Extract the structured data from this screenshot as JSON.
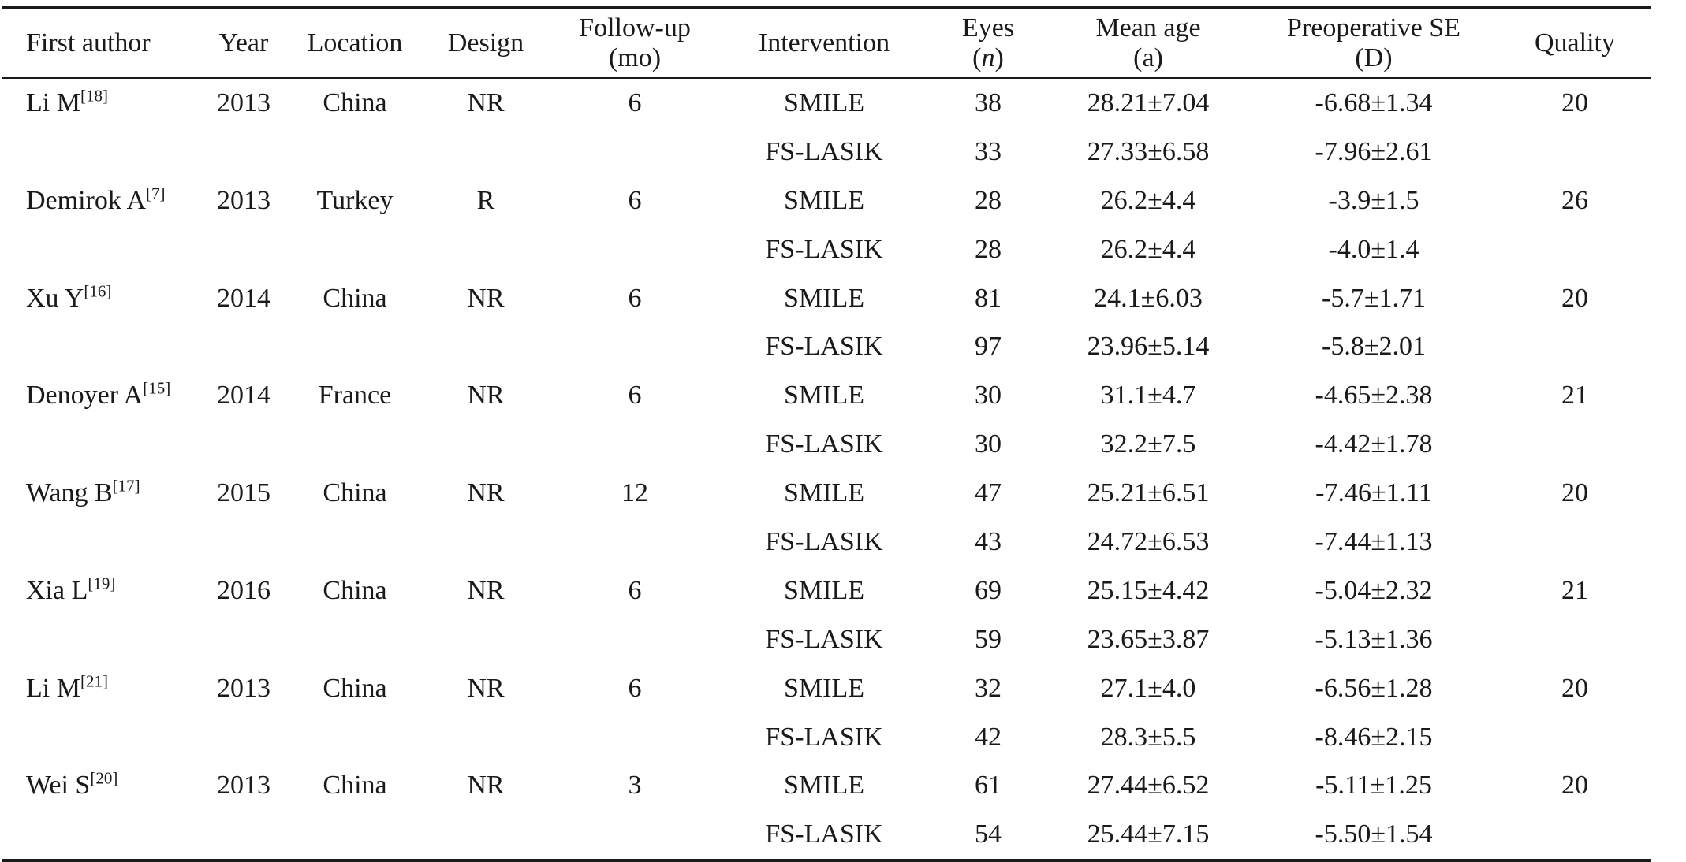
{
  "table": {
    "headers": [
      {
        "key": "author",
        "lines": [
          "First author"
        ]
      },
      {
        "key": "year",
        "lines": [
          "Year"
        ]
      },
      {
        "key": "location",
        "lines": [
          "Location"
        ]
      },
      {
        "key": "design",
        "lines": [
          "Design"
        ]
      },
      {
        "key": "followup",
        "lines": [
          "Follow-up",
          "(mo)"
        ]
      },
      {
        "key": "intervention",
        "lines": [
          "Intervention"
        ]
      },
      {
        "key": "eyes",
        "lines": [
          "Eyes",
          "n"
        ]
      },
      {
        "key": "mean_age",
        "lines": [
          "Mean age",
          "(a)"
        ]
      },
      {
        "key": "preop_se",
        "lines": [
          "Preoperative SE",
          "(D)"
        ]
      },
      {
        "key": "quality",
        "lines": [
          "Quality"
        ]
      }
    ],
    "rows": [
      {
        "author": "Li M",
        "ref": "[18]",
        "year": "2013",
        "location": "China",
        "design": "NR",
        "followup": "6",
        "intervention": "SMILE",
        "eyes": "38",
        "mean_age": "28.21±7.04",
        "preop_se": "-6.68±1.34",
        "quality": "20"
      },
      {
        "author": "",
        "ref": "",
        "year": "",
        "location": "",
        "design": "",
        "followup": "",
        "intervention": "FS-LASIK",
        "eyes": "33",
        "mean_age": "27.33±6.58",
        "preop_se": "-7.96±2.61",
        "quality": ""
      },
      {
        "author": "Demirok A",
        "ref": "[7]",
        "year": "2013",
        "location": "Turkey",
        "design": "R",
        "followup": "6",
        "intervention": "SMILE",
        "eyes": "28",
        "mean_age": "26.2±4.4",
        "preop_se": "-3.9±1.5",
        "quality": "26"
      },
      {
        "author": "",
        "ref": "",
        "year": "",
        "location": "",
        "design": "",
        "followup": "",
        "intervention": "FS-LASIK",
        "eyes": "28",
        "mean_age": "26.2±4.4",
        "preop_se": "-4.0±1.4",
        "quality": ""
      },
      {
        "author": "Xu Y",
        "ref": "[16]",
        "year": "2014",
        "location": "China",
        "design": "NR",
        "followup": "6",
        "intervention": "SMILE",
        "eyes": "81",
        "mean_age": "24.1±6.03",
        "preop_se": "-5.7±1.71",
        "quality": "20"
      },
      {
        "author": "",
        "ref": "",
        "year": "",
        "location": "",
        "design": "",
        "followup": "",
        "intervention": "FS-LASIK",
        "eyes": "97",
        "mean_age": "23.96±5.14",
        "preop_se": "-5.8±2.01",
        "quality": ""
      },
      {
        "author": "Denoyer A",
        "ref": "[15]",
        "year": "2014",
        "location": "France",
        "design": "NR",
        "followup": "6",
        "intervention": "SMILE",
        "eyes": "30",
        "mean_age": "31.1±4.7",
        "preop_se": "-4.65±2.38",
        "quality": "21"
      },
      {
        "author": "",
        "ref": "",
        "year": "",
        "location": "",
        "design": "",
        "followup": "",
        "intervention": "FS-LASIK",
        "eyes": "30",
        "mean_age": "32.2±7.5",
        "preop_se": "-4.42±1.78",
        "quality": ""
      },
      {
        "author": "Wang B",
        "ref": "[17]",
        "year": "2015",
        "location": "China",
        "design": "NR",
        "followup": "12",
        "intervention": "SMILE",
        "eyes": "47",
        "mean_age": "25.21±6.51",
        "preop_se": "-7.46±1.11",
        "quality": "20"
      },
      {
        "author": "",
        "ref": "",
        "year": "",
        "location": "",
        "design": "",
        "followup": "",
        "intervention": "FS-LASIK",
        "eyes": "43",
        "mean_age": "24.72±6.53",
        "preop_se": "-7.44±1.13",
        "quality": ""
      },
      {
        "author": "Xia L",
        "ref": "[19]",
        "year": "2016",
        "location": "China",
        "design": "NR",
        "followup": "6",
        "intervention": "SMILE",
        "eyes": "69",
        "mean_age": "25.15±4.42",
        "preop_se": "-5.04±2.32",
        "quality": "21"
      },
      {
        "author": "",
        "ref": "",
        "year": "",
        "location": "",
        "design": "",
        "followup": "",
        "intervention": "FS-LASIK",
        "eyes": "59",
        "mean_age": "23.65±3.87",
        "preop_se": "-5.13±1.36",
        "quality": ""
      },
      {
        "author": "Li M",
        "ref": "[21]",
        "year": "2013",
        "location": "China",
        "design": "NR",
        "followup": "6",
        "intervention": "SMILE",
        "eyes": "32",
        "mean_age": "27.1±4.0",
        "preop_se": "-6.56±1.28",
        "quality": "20"
      },
      {
        "author": "",
        "ref": "",
        "year": "",
        "location": "",
        "design": "",
        "followup": "",
        "intervention": "FS-LASIK",
        "eyes": "42",
        "mean_age": "28.3±5.5",
        "preop_se": "-8.46±2.15",
        "quality": ""
      },
      {
        "author": "Wei S",
        "ref": "[20]",
        "year": "2013",
        "location": "China",
        "design": "NR",
        "followup": "3",
        "intervention": "SMILE",
        "eyes": "61",
        "mean_age": "27.44±6.52",
        "preop_se": "-5.11±1.25",
        "quality": "20"
      },
      {
        "author": "",
        "ref": "",
        "year": "",
        "location": "",
        "design": "",
        "followup": "",
        "intervention": "FS-LASIK",
        "eyes": "54",
        "mean_age": "25.44±7.15",
        "preop_se": "-5.50±1.54",
        "quality": ""
      }
    ]
  }
}
